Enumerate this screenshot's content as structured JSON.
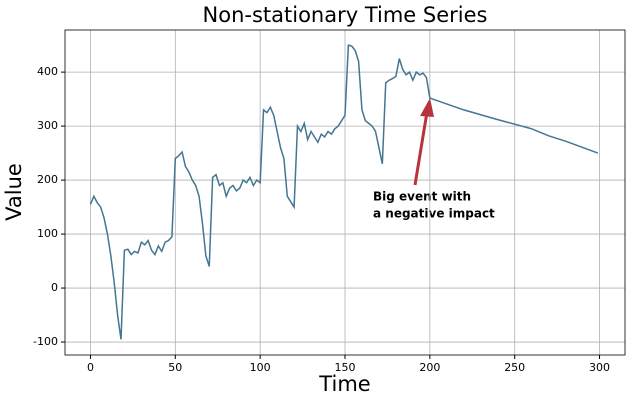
{
  "chart_data": {
    "type": "line",
    "title": "Non-stationary Time Series",
    "xlabel": "Time",
    "ylabel": "Value",
    "x": [
      0,
      2,
      4,
      6,
      8,
      10,
      12,
      14,
      16,
      18,
      20,
      22,
      24,
      26,
      28,
      30,
      32,
      34,
      36,
      38,
      40,
      42,
      44,
      46,
      48,
      50,
      52,
      54,
      56,
      58,
      60,
      62,
      64,
      66,
      68,
      70,
      72,
      74,
      76,
      78,
      80,
      82,
      84,
      86,
      88,
      90,
      92,
      94,
      96,
      98,
      100,
      102,
      104,
      106,
      108,
      110,
      112,
      114,
      116,
      118,
      120,
      122,
      124,
      126,
      128,
      130,
      132,
      134,
      136,
      138,
      140,
      142,
      144,
      146,
      148,
      150,
      152,
      154,
      156,
      158,
      160,
      162,
      164,
      166,
      168,
      170,
      172,
      174,
      176,
      178,
      180,
      182,
      184,
      186,
      188,
      190,
      192,
      194,
      196,
      198,
      200,
      220,
      240,
      260,
      270,
      280,
      299
    ],
    "series": [
      {
        "name": "Value",
        "color": "#447592",
        "values": [
          155,
          170,
          158,
          150,
          130,
          100,
          60,
          10,
          -50,
          -95,
          70,
          72,
          62,
          68,
          65,
          85,
          80,
          88,
          70,
          62,
          78,
          68,
          85,
          88,
          95,
          240,
          245,
          252,
          225,
          215,
          200,
          190,
          170,
          120,
          60,
          40,
          205,
          210,
          190,
          195,
          170,
          185,
          190,
          180,
          185,
          200,
          195,
          205,
          190,
          200,
          195,
          330,
          325,
          335,
          320,
          290,
          260,
          240,
          170,
          160,
          150,
          300,
          290,
          305,
          275,
          290,
          280,
          270,
          285,
          280,
          290,
          285,
          295,
          300,
          310,
          320,
          450,
          448,
          440,
          420,
          330,
          310,
          305,
          300,
          290,
          260,
          230,
          380,
          385,
          388,
          392,
          425,
          405,
          395,
          400,
          385,
          400,
          395,
          398,
          390,
          352,
          330,
          312,
          295,
          282,
          272,
          250
        ]
      }
    ],
    "annotation": [
      "Big event with",
      "a negative impact"
    ],
    "xlim": [
      -15,
      315
    ],
    "ylim": [
      -124,
      478
    ],
    "xticks": [
      0,
      50,
      100,
      150,
      200,
      250,
      300
    ],
    "yticks": [
      -100,
      0,
      100,
      200,
      300,
      400
    ],
    "grid": true
  }
}
